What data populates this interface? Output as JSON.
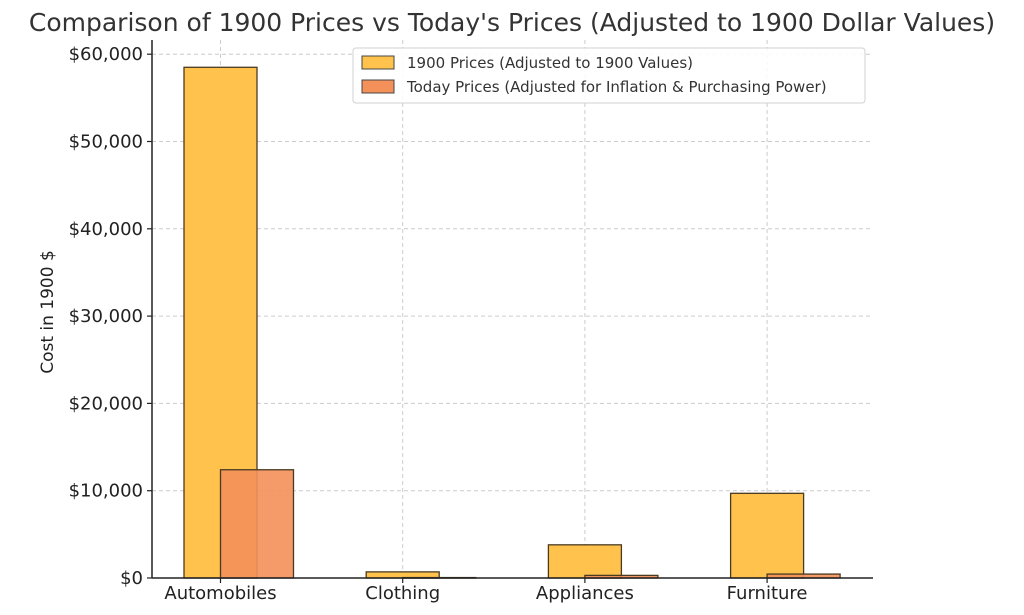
{
  "chart_data": {
    "type": "bar",
    "title": "Comparison of 1900 Prices vs Today's Prices (Adjusted to 1900 Dollar Values)",
    "xlabel": "",
    "ylabel": "Cost in 1900 $",
    "categories": [
      "Automobiles",
      "Clothing",
      "Appliances",
      "Furniture"
    ],
    "series": [
      {
        "name": "1900 Prices (Adjusted to 1900 Values)",
        "color": "#FFC34D",
        "values": [
          58500,
          700,
          3800,
          9700
        ]
      },
      {
        "name": "Today Prices (Adjusted for Inflation & Purchasing Power)",
        "color": "#F4905A",
        "values": [
          12400,
          50,
          300,
          450
        ]
      }
    ],
    "ylim": [
      0,
      62000
    ],
    "yticks": [
      0,
      10000,
      20000,
      30000,
      40000,
      50000,
      60000
    ],
    "ytick_labels": [
      "$0",
      "$10,000",
      "$20,000",
      "$30,000",
      "$40,000",
      "$50,000",
      "$60,000"
    ],
    "grid": true,
    "legend_position": "top-right"
  }
}
